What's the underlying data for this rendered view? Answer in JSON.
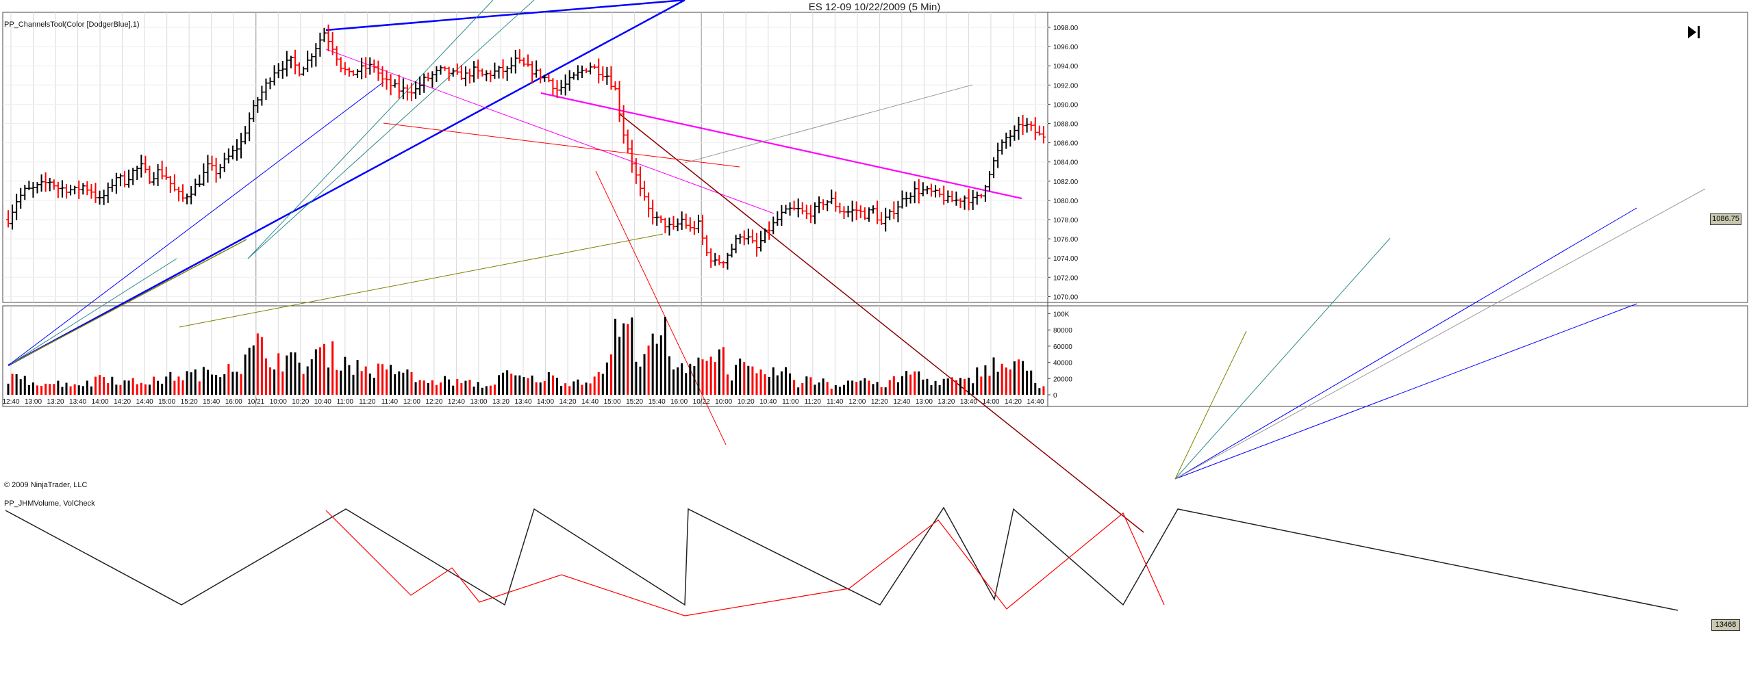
{
  "window": {
    "title": "ES 12-09  10/22/2009 (5 Min)",
    "play_icon": "skip-to-end-icon"
  },
  "price_panel": {
    "indicator_label": "PP_ChannelsTool(Color [DodgerBlue],1)",
    "copyright": "© 2009 NinjaTrader, LLC",
    "last_price_badge": "1086.75",
    "y_ticks": [
      "1098.00",
      "1096.00",
      "1094.00",
      "1092.00",
      "1090.00",
      "1088.00",
      "1086.00",
      "1084.00",
      "1082.00",
      "1080.00",
      "1078.00",
      "1076.00",
      "1074.00",
      "1072.00",
      "1070.00"
    ]
  },
  "volume_panel": {
    "indicator_label": "PP_JHMVolume, VolCheck",
    "last_volume_badge": "13468",
    "y_ticks": [
      "100K",
      "80000",
      "60000",
      "40000",
      "20000",
      "0"
    ]
  },
  "x_ticks": [
    "12:40",
    "13:00",
    "13:20",
    "13:40",
    "14:00",
    "14:20",
    "14:40",
    "15:00",
    "15:20",
    "15:40",
    "16:00",
    "10/21",
    "10:00",
    "10:20",
    "10:40",
    "11:00",
    "11:20",
    "11:40",
    "12:00",
    "12:20",
    "12:40",
    "13:00",
    "13:20",
    "13:40",
    "14:00",
    "14:20",
    "14:40",
    "15:00",
    "15:20",
    "15:40",
    "16:00",
    "10/22",
    "10:00",
    "10:20",
    "10:40",
    "11:00",
    "11:20",
    "11:40",
    "12:00",
    "12:20",
    "12:40",
    "13:00",
    "13:20",
    "13:40",
    "14:00",
    "14:20",
    "14:40"
  ],
  "colors": {
    "up_bar": "#000000",
    "down_bar": "#ff0000",
    "channel_magenta": "#ff00ff",
    "channel_blue": "#0000ff",
    "trend_olive": "#808000",
    "trend_teal": "#2e8b8b",
    "trend_darkred": "#8b0000",
    "grid": "#d9d9d9"
  },
  "chart_data": [
    {
      "type": "ohlc",
      "title": "ES 12-09  10/22/2009 (5 Min)",
      "ylim": [
        1069,
        1100
      ],
      "x_ticks": [
        "12:40",
        "13:00",
        "13:20",
        "13:40",
        "14:00",
        "14:20",
        "14:40",
        "15:00",
        "15:20",
        "15:40",
        "16:00",
        "10/21",
        "10:00",
        "10:20",
        "10:40",
        "11:00",
        "11:20",
        "11:40",
        "12:00",
        "12:20",
        "12:40",
        "13:00",
        "13:20",
        "13:40",
        "14:00",
        "14:20",
        "14:40",
        "15:00",
        "15:20",
        "15:40",
        "16:00",
        "10/22",
        "10:00",
        "10:20",
        "10:40",
        "11:00",
        "11:20",
        "11:40",
        "12:00",
        "12:20",
        "12:40",
        "13:00",
        "13:20",
        "13:40",
        "14:00",
        "14:20",
        "14:40"
      ],
      "close_path": [
        [
          0,
          1078
        ],
        [
          2,
          1080
        ],
        [
          4,
          1081
        ],
        [
          6,
          1081.2
        ],
        [
          8,
          1081.6
        ],
        [
          10,
          1082
        ],
        [
          12,
          1081.3
        ],
        [
          14,
          1081.2
        ],
        [
          16,
          1081
        ],
        [
          18,
          1081.5
        ],
        [
          20,
          1081
        ],
        [
          22,
          1080
        ],
        [
          24,
          1081
        ],
        [
          26,
          1082.5
        ],
        [
          28,
          1082
        ],
        [
          30,
          1083
        ],
        [
          32,
          1083.5
        ],
        [
          34,
          1082.3
        ],
        [
          36,
          1083
        ],
        [
          38,
          1082.5
        ],
        [
          40,
          1081
        ],
        [
          42,
          1080.2
        ],
        [
          44,
          1081
        ],
        [
          46,
          1082
        ],
        [
          48,
          1083.5
        ],
        [
          50,
          1083
        ],
        [
          52,
          1084
        ],
        [
          54,
          1085
        ],
        [
          56,
          1086
        ],
        [
          58,
          1088.5
        ],
        [
          60,
          1090.5
        ],
        [
          62,
          1092
        ],
        [
          64,
          1093.5
        ],
        [
          66,
          1094
        ],
        [
          68,
          1094.5
        ],
        [
          70,
          1093.5
        ],
        [
          72,
          1094.5
        ],
        [
          74,
          1096
        ],
        [
          76,
          1097.5
        ],
        [
          78,
          1096
        ],
        [
          80,
          1094
        ],
        [
          82,
          1093
        ],
        [
          84,
          1093.5
        ],
        [
          86,
          1093.8
        ],
        [
          88,
          1094
        ],
        [
          90,
          1092.5
        ],
        [
          92,
          1092
        ],
        [
          94,
          1091.5
        ],
        [
          96,
          1091.5
        ],
        [
          98,
          1091.5
        ],
        [
          100,
          1092.5
        ],
        [
          102,
          1093
        ],
        [
          104,
          1093.5
        ],
        [
          106,
          1093.3
        ],
        [
          108,
          1093
        ],
        [
          110,
          1093
        ],
        [
          112,
          1093.5
        ],
        [
          114,
          1093
        ],
        [
          116,
          1093.2
        ],
        [
          118,
          1093.5
        ],
        [
          120,
          1093.5
        ],
        [
          122,
          1094.5
        ],
        [
          124,
          1094
        ],
        [
          126,
          1093.5
        ],
        [
          128,
          1093
        ],
        [
          130,
          1092.5
        ],
        [
          132,
          1091.5
        ],
        [
          134,
          1092
        ],
        [
          136,
          1092.8
        ],
        [
          138,
          1093.5
        ],
        [
          140,
          1094
        ],
        [
          142,
          1093.5
        ],
        [
          144,
          1093
        ],
        [
          146,
          1091.5
        ],
        [
          148,
          1087
        ],
        [
          150,
          1084
        ],
        [
          152,
          1081
        ],
        [
          154,
          1079
        ],
        [
          156,
          1078
        ],
        [
          158,
          1077.5
        ],
        [
          160,
          1077
        ],
        [
          162,
          1078
        ],
        [
          164,
          1077
        ],
        [
          166,
          1077.5
        ],
        [
          168,
          1074.5
        ],
        [
          170,
          1073.5
        ],
        [
          172,
          1073.8
        ],
        [
          174,
          1075
        ],
        [
          176,
          1076.5
        ],
        [
          178,
          1076
        ],
        [
          180,
          1075
        ],
        [
          182,
          1076.5
        ],
        [
          184,
          1077.5
        ],
        [
          186,
          1078.5
        ],
        [
          188,
          1079
        ],
        [
          190,
          1079
        ],
        [
          192,
          1078.5
        ],
        [
          194,
          1079
        ],
        [
          196,
          1079.8
        ],
        [
          198,
          1080
        ],
        [
          200,
          1079
        ],
        [
          202,
          1078.8
        ],
        [
          204,
          1079
        ],
        [
          206,
          1078.5
        ],
        [
          208,
          1079
        ],
        [
          210,
          1077.5
        ],
        [
          212,
          1078.5
        ],
        [
          214,
          1079.5
        ],
        [
          216,
          1080.5
        ],
        [
          218,
          1081
        ],
        [
          220,
          1081
        ],
        [
          222,
          1080.8
        ],
        [
          224,
          1080.5
        ],
        [
          226,
          1080
        ],
        [
          228,
          1080
        ],
        [
          230,
          1080.3
        ],
        [
          232,
          1080
        ],
        [
          234,
          1080.5
        ],
        [
          236,
          1083
        ],
        [
          238,
          1085
        ],
        [
          240,
          1086.5
        ],
        [
          242,
          1087
        ],
        [
          244,
          1088
        ],
        [
          246,
          1087.5
        ],
        [
          248,
          1086.75
        ]
      ]
    },
    {
      "type": "bar",
      "title": "PP_JHMVolume, VolCheck",
      "ylim": [
        0,
        110000
      ],
      "x_ticks": [
        "12:40",
        "13:00",
        "13:20",
        "13:40",
        "14:00",
        "14:20",
        "14:40",
        "15:00",
        "15:20",
        "15:40",
        "16:00",
        "10/21",
        "10:00",
        "10:20",
        "10:40",
        "11:00",
        "11:20",
        "11:40",
        "12:00",
        "12:20",
        "12:40",
        "13:00",
        "13:20",
        "13:40",
        "14:00",
        "14:20",
        "14:40",
        "15:00",
        "15:20",
        "15:40",
        "16:00",
        "10/22",
        "10:00",
        "10:20",
        "10:40",
        "11:00",
        "11:20",
        "11:40",
        "12:00",
        "12:20",
        "12:40",
        "13:00",
        "13:20",
        "13:40",
        "14:00",
        "14:20",
        "14:40"
      ],
      "note_levels": [
        [
          0,
          24
        ],
        [
          10,
          17
        ],
        [
          20,
          16
        ],
        [
          22,
          30
        ],
        [
          28,
          18
        ],
        [
          36,
          20
        ],
        [
          40,
          27
        ],
        [
          46,
          30
        ],
        [
          50,
          32
        ],
        [
          52,
          46
        ],
        [
          56,
          42
        ],
        [
          58,
          56
        ],
        [
          60,
          72
        ],
        [
          62,
          58
        ],
        [
          66,
          52
        ],
        [
          70,
          45
        ],
        [
          72,
          42
        ],
        [
          74,
          60
        ],
        [
          78,
          58
        ],
        [
          84,
          40
        ],
        [
          88,
          35
        ],
        [
          92,
          34
        ],
        [
          94,
          38
        ],
        [
          98,
          22
        ],
        [
          102,
          17
        ],
        [
          104,
          22
        ],
        [
          108,
          18
        ],
        [
          112,
          16
        ],
        [
          116,
          12
        ],
        [
          118,
          30
        ],
        [
          122,
          25
        ],
        [
          126,
          22
        ],
        [
          130,
          26
        ],
        [
          134,
          18
        ],
        [
          136,
          20
        ],
        [
          140,
          23
        ],
        [
          142,
          25
        ],
        [
          144,
          50
        ],
        [
          146,
          90
        ],
        [
          148,
          95
        ],
        [
          150,
          88
        ],
        [
          152,
          60
        ],
        [
          154,
          72
        ],
        [
          156,
          62
        ],
        [
          158,
          100
        ],
        [
          160,
          28
        ],
        [
          162,
          40
        ],
        [
          164,
          48
        ],
        [
          166,
          62
        ],
        [
          168,
          44
        ],
        [
          170,
          70
        ],
        [
          172,
          56
        ],
        [
          174,
          30
        ],
        [
          176,
          40
        ],
        [
          178,
          36
        ],
        [
          180,
          25
        ],
        [
          182,
          30
        ],
        [
          184,
          34
        ],
        [
          186,
          28
        ],
        [
          188,
          32
        ],
        [
          190,
          16
        ],
        [
          192,
          22
        ],
        [
          194,
          18
        ],
        [
          196,
          25
        ],
        [
          198,
          12
        ],
        [
          200,
          16
        ],
        [
          202,
          22
        ],
        [
          204,
          18
        ],
        [
          206,
          25
        ],
        [
          208,
          16
        ],
        [
          210,
          12
        ],
        [
          212,
          18
        ],
        [
          214,
          22
        ],
        [
          216,
          28
        ],
        [
          218,
          34
        ],
        [
          220,
          24
        ],
        [
          222,
          20
        ],
        [
          224,
          16
        ],
        [
          226,
          22
        ],
        [
          228,
          20
        ],
        [
          230,
          18
        ],
        [
          232,
          24
        ],
        [
          234,
          40
        ],
        [
          236,
          42
        ],
        [
          238,
          44
        ],
        [
          240,
          38
        ],
        [
          242,
          46
        ],
        [
          244,
          38
        ],
        [
          246,
          32
        ],
        [
          248,
          13.468
        ]
      ]
    }
  ]
}
